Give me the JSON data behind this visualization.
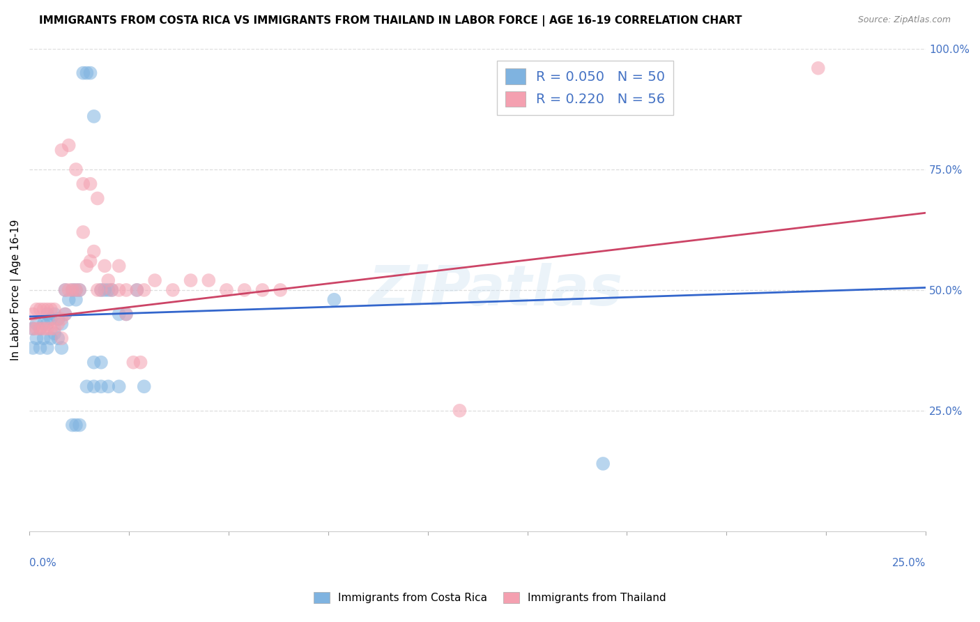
{
  "title": "IMMIGRANTS FROM COSTA RICA VS IMMIGRANTS FROM THAILAND IN LABOR FORCE | AGE 16-19 CORRELATION CHART",
  "source": "Source: ZipAtlas.com",
  "ylabel": "In Labor Force | Age 16-19",
  "xlim": [
    0,
    0.25
  ],
  "ylim": [
    0,
    1.0
  ],
  "watermark": "ZIPatlas",
  "blue_scatter_x": [
    0.001,
    0.001,
    0.002,
    0.002,
    0.003,
    0.003,
    0.004,
    0.004,
    0.005,
    0.005,
    0.005,
    0.006,
    0.006,
    0.007,
    0.007,
    0.008,
    0.008,
    0.009,
    0.009,
    0.01,
    0.01,
    0.011,
    0.012,
    0.013,
    0.013,
    0.014,
    0.015,
    0.016,
    0.017,
    0.018,
    0.02,
    0.021,
    0.022,
    0.023,
    0.025,
    0.027,
    0.03,
    0.032,
    0.012,
    0.013,
    0.014,
    0.016,
    0.018,
    0.02,
    0.022,
    0.025,
    0.018,
    0.02,
    0.16,
    0.085
  ],
  "blue_scatter_y": [
    0.42,
    0.38,
    0.43,
    0.4,
    0.42,
    0.38,
    0.43,
    0.4,
    0.45,
    0.43,
    0.38,
    0.44,
    0.4,
    0.45,
    0.41,
    0.44,
    0.4,
    0.43,
    0.38,
    0.5,
    0.45,
    0.48,
    0.5,
    0.5,
    0.48,
    0.5,
    0.95,
    0.95,
    0.95,
    0.86,
    0.5,
    0.5,
    0.5,
    0.5,
    0.45,
    0.45,
    0.5,
    0.3,
    0.22,
    0.22,
    0.22,
    0.3,
    0.3,
    0.3,
    0.3,
    0.3,
    0.35,
    0.35,
    0.14,
    0.48
  ],
  "pink_scatter_x": [
    0.001,
    0.001,
    0.002,
    0.002,
    0.003,
    0.003,
    0.004,
    0.004,
    0.005,
    0.005,
    0.006,
    0.006,
    0.007,
    0.007,
    0.008,
    0.009,
    0.009,
    0.01,
    0.01,
    0.011,
    0.012,
    0.013,
    0.014,
    0.015,
    0.016,
    0.017,
    0.018,
    0.019,
    0.02,
    0.022,
    0.025,
    0.027,
    0.03,
    0.032,
    0.035,
    0.04,
    0.045,
    0.05,
    0.055,
    0.06,
    0.065,
    0.07,
    0.009,
    0.011,
    0.013,
    0.015,
    0.017,
    0.019,
    0.021,
    0.023,
    0.025,
    0.027,
    0.029,
    0.031,
    0.12,
    0.22
  ],
  "pink_scatter_y": [
    0.45,
    0.42,
    0.46,
    0.42,
    0.46,
    0.42,
    0.46,
    0.42,
    0.46,
    0.42,
    0.46,
    0.42,
    0.46,
    0.42,
    0.43,
    0.44,
    0.4,
    0.45,
    0.5,
    0.5,
    0.5,
    0.5,
    0.5,
    0.62,
    0.55,
    0.56,
    0.58,
    0.5,
    0.5,
    0.52,
    0.55,
    0.5,
    0.5,
    0.5,
    0.52,
    0.5,
    0.52,
    0.52,
    0.5,
    0.5,
    0.5,
    0.5,
    0.79,
    0.8,
    0.75,
    0.72,
    0.72,
    0.69,
    0.55,
    0.5,
    0.5,
    0.45,
    0.35,
    0.35,
    0.25,
    0.96
  ],
  "blue_line_x": [
    0.0,
    0.25
  ],
  "blue_line_y": [
    0.445,
    0.505
  ],
  "pink_line_x": [
    0.0,
    0.25
  ],
  "pink_line_y": [
    0.44,
    0.66
  ],
  "blue_dot_color": "#7fb3e0",
  "pink_dot_color": "#f4a0b0",
  "blue_line_color": "#3366cc",
  "pink_line_color": "#cc4466",
  "axis_label_color": "#4472c4",
  "grid_color": "#dddddd",
  "title_fontsize": 11,
  "source_fontsize": 9,
  "ylabel_fontsize": 11,
  "ytick_fontsize": 11
}
